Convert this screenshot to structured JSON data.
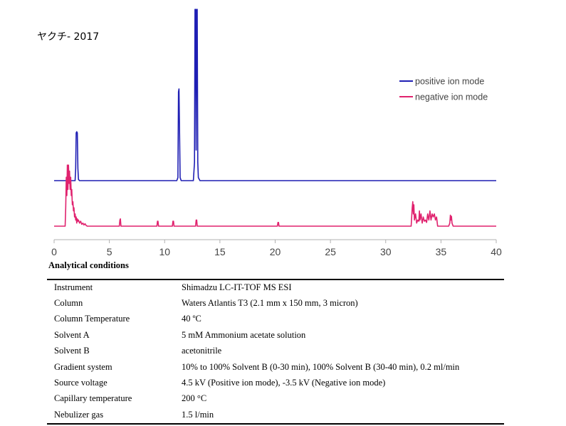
{
  "chart_data": {
    "type": "line",
    "title": "ヤクチ- 2017",
    "xlabel": "",
    "ylabel": "",
    "xlim": [
      0,
      40
    ],
    "x_ticks": [
      "0",
      "5",
      "10",
      "15",
      "20",
      "25",
      "30",
      "35",
      "40"
    ],
    "grid": false,
    "legend_position": "top-right",
    "series": [
      {
        "name": "positive ion mode",
        "color": "#1f1fb4",
        "x": [
          0,
          1.9,
          1.95,
          2.0,
          2.05,
          2.1,
          2.15,
          2.2,
          2.3,
          11.1,
          11.2,
          11.25,
          11.3,
          11.35,
          11.4,
          11.5,
          12.6,
          12.7,
          12.75,
          12.8,
          12.85,
          12.9,
          12.95,
          13.0,
          13.05,
          13.2,
          40
        ],
        "y": [
          0,
          0,
          0.2,
          0.78,
          0.8,
          0.78,
          0.2,
          0.02,
          0,
          0,
          0.05,
          1.45,
          1.5,
          0.8,
          0.05,
          0,
          0,
          0.3,
          2.8,
          2.8,
          0.5,
          2.8,
          2.8,
          0.3,
          0.05,
          0,
          0
        ]
      },
      {
        "name": "negative ion mode",
        "color": "#e0226e",
        "x": [
          0,
          1.0,
          1.05,
          1.1,
          1.15,
          1.2,
          1.25,
          1.3,
          1.35,
          1.4,
          1.45,
          1.5,
          1.55,
          1.6,
          1.65,
          1.7,
          1.75,
          1.8,
          1.85,
          1.9,
          1.95,
          2.0,
          2.05,
          2.1,
          2.15,
          2.2,
          2.3,
          2.4,
          2.5,
          2.6,
          2.7,
          2.8,
          2.9,
          3.0,
          5.9,
          5.95,
          6.0,
          6.05,
          9.3,
          9.35,
          9.4,
          9.45,
          10.7,
          10.75,
          10.8,
          10.85,
          12.8,
          12.85,
          12.9,
          12.95,
          20.2,
          20.25,
          20.3,
          20.35,
          32.3,
          32.4,
          32.45,
          32.5,
          32.55,
          32.6,
          32.7,
          32.8,
          32.9,
          33.0,
          33.05,
          33.1,
          33.2,
          33.3,
          33.4,
          33.5,
          33.6,
          33.7,
          33.8,
          33.9,
          34.0,
          34.1,
          34.2,
          34.3,
          34.4,
          34.5,
          34.6,
          34.7,
          35.7,
          35.8,
          35.85,
          35.9,
          35.95,
          36.0,
          36.1,
          40
        ],
        "y": [
          0,
          0,
          0.3,
          0.8,
          0.5,
          1.0,
          0.6,
          1.0,
          0.7,
          0.9,
          0.6,
          0.8,
          0.5,
          0.6,
          0.35,
          0.4,
          0.25,
          0.3,
          0.15,
          0.2,
          0.1,
          0.15,
          0.05,
          0.12,
          0.08,
          0.1,
          0.05,
          0.08,
          0.03,
          0.05,
          0.02,
          0.04,
          0.01,
          0,
          0,
          0.1,
          0.12,
          0,
          0,
          0.08,
          0.08,
          0,
          0,
          0.08,
          0.08,
          0,
          0,
          0.1,
          0.1,
          0,
          0,
          0.06,
          0.06,
          0,
          0,
          0.3,
          0.4,
          0.2,
          0.35,
          0.1,
          0.2,
          0.05,
          0.1,
          0.08,
          0.25,
          0.1,
          0.2,
          0.05,
          0.15,
          0.08,
          0.1,
          0.06,
          0.2,
          0.1,
          0.25,
          0.1,
          0.2,
          0.15,
          0.2,
          0.1,
          0.15,
          0,
          0,
          0.05,
          0.18,
          0.1,
          0.16,
          0.05,
          0,
          0
        ]
      }
    ]
  },
  "conditions": {
    "title": "Analytical conditions",
    "rows": [
      {
        "param": "Instrument",
        "value": "Shimadzu LC-IT-TOF MS ESI"
      },
      {
        "param": "Column",
        "value": "Waters Atlantis T3 (2.1 mm x 150 mm, 3 micron)"
      },
      {
        "param": "Column Temperature",
        "value": "40 ºC"
      },
      {
        "param": "Solvent A",
        "value": "5 mM Ammonium acetate solution"
      },
      {
        "param": "Solvent B",
        "value": "acetonitrile"
      },
      {
        "param": "Gradient system",
        "value": "10% to 100% Solvent B (0-30 min), 100% Solvent B (30-40 min), 0.2 ml/min"
      },
      {
        "param": "Source voltage",
        "value": "4.5 kV (Positive ion mode), -3.5 kV (Negative ion mode)"
      },
      {
        "param": "Capillary temperature",
        "value": "200 °C"
      },
      {
        "param": "Nebulizer gas",
        "value": "1.5 l/min"
      }
    ]
  }
}
